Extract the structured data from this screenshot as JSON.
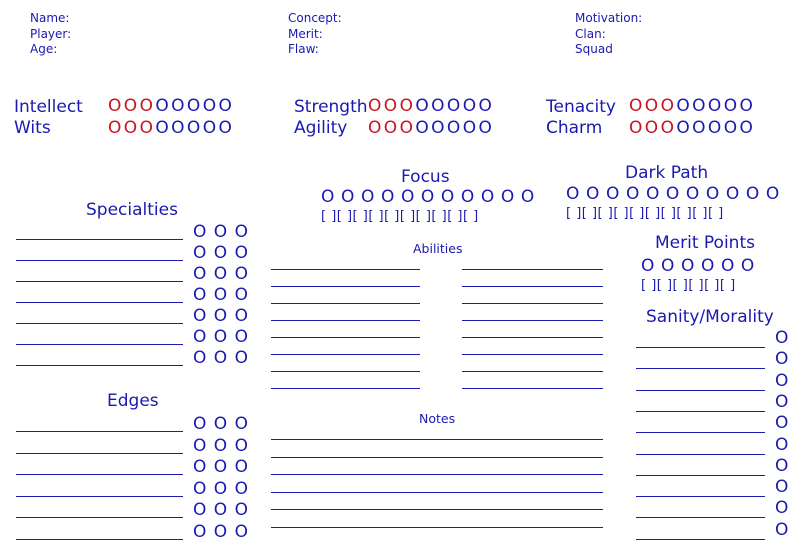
{
  "header": {
    "col1": [
      "Name:",
      "Player:",
      "Age:"
    ],
    "col2": [
      "Concept:",
      "Merit:",
      "Flaw:"
    ],
    "col3": [
      "Motivation:",
      "Clan:",
      "Squad"
    ]
  },
  "attributes": {
    "mental": [
      {
        "label": "Intellect",
        "filled": 3,
        "total": 8
      },
      {
        "label": "Wits",
        "filled": 3,
        "total": 8
      }
    ],
    "physical": [
      {
        "label": "Strength",
        "filled": 3,
        "total": 8
      },
      {
        "label": "Agility",
        "filled": 3,
        "total": 8
      }
    ],
    "social": [
      {
        "label": "Tenacity",
        "filled": 3,
        "total": 8
      },
      {
        "label": "Charm",
        "filled": 3,
        "total": 8
      }
    ]
  },
  "focus": {
    "title": "Focus",
    "dots": "O O O O O O O O O O O",
    "boxes": "[ ][ ][ ][ ][ ][ ][ ][ ][ ][ ]"
  },
  "dark_path": {
    "title": "Dark Path",
    "dots": "O O O O O O O O O O O",
    "boxes": "[ ][ ][ ][ ][ ][ ][ ][ ][ ][ ]"
  },
  "specialties": {
    "title": "Specialties",
    "dots": "O O O",
    "rows": 7
  },
  "edges": {
    "title": "Edges",
    "dots": "O O O",
    "rows": 6
  },
  "abilities": {
    "title": "Abilities"
  },
  "notes": {
    "title": "Notes"
  },
  "merit_points": {
    "title": "Merit Points",
    "dots": "O O O O O O",
    "boxes": "[ ][ ][ ][ ][ ][ ]"
  },
  "sanity": {
    "title": "Sanity/Morality",
    "dot": "O",
    "rows": 10
  },
  "colors": {
    "ink": "#1a1ab0",
    "filled": "#c8141e"
  }
}
